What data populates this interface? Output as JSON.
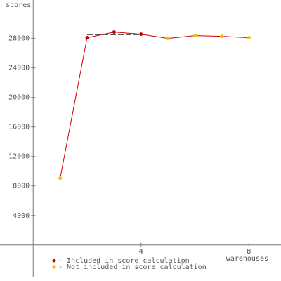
{
  "chart_data": {
    "type": "line",
    "y_label": "scores",
    "x_label": "warehouses",
    "x": [
      1,
      2,
      3,
      4,
      5,
      6,
      7,
      8
    ],
    "values": [
      9050,
      28100,
      28860,
      28570,
      28000,
      28380,
      28290,
      28100
    ],
    "line_color": "#cc0000",
    "point_colors": [
      "#f0c000",
      "#cc0000",
      "#cc0000",
      "#cc0000",
      "#f0c000",
      "#f0c000",
      "#f0c000",
      "#f0c000"
    ],
    "reference_line": {
      "value": 28500,
      "x": [
        2,
        4
      ],
      "color": "#444444"
    },
    "xlim": [
      -1.23,
      9.19
    ],
    "ylim": [
      -4400,
      33200
    ],
    "xticks": [
      4,
      8
    ],
    "yticks": [
      4000,
      8000,
      12000,
      16000,
      20000,
      24000,
      28000
    ],
    "legend": [
      {
        "label": "- Included in score calculation",
        "color": "#cc0000"
      },
      {
        "label": "- Not included in score calculation",
        "color": "#f0c000"
      }
    ]
  }
}
